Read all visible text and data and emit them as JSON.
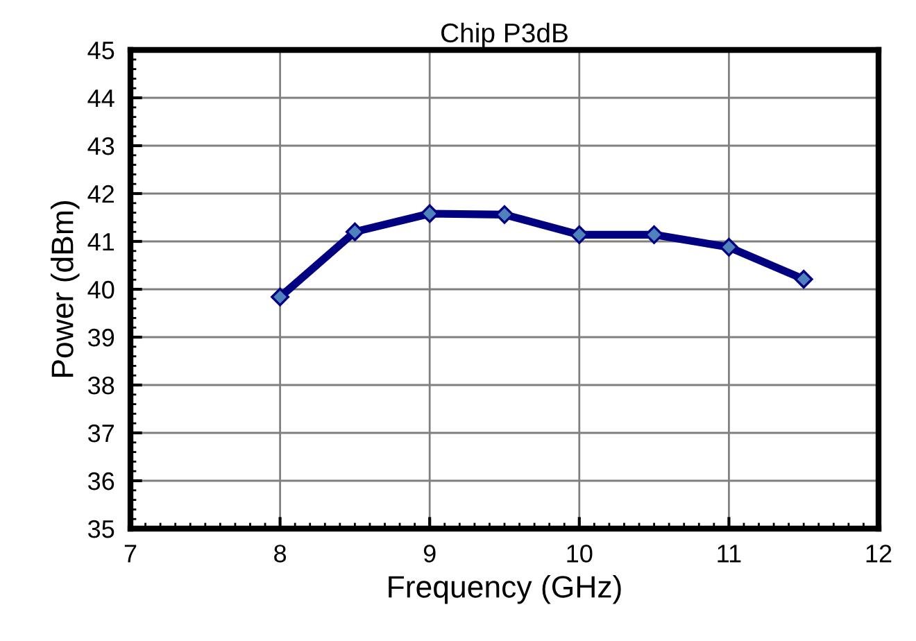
{
  "chart_data": {
    "type": "line",
    "title": "Chip P3dB",
    "xlabel": "Frequency (GHz)",
    "ylabel": "Power (dBm)",
    "x": [
      8,
      8.5,
      9,
      9.5,
      10,
      10.5,
      11,
      11.5
    ],
    "series": [
      {
        "color": "#000080",
        "values": [
          39.84,
          41.2,
          41.58,
          41.56,
          41.14,
          41.14,
          40.88,
          40.21
        ]
      }
    ],
    "xlim": [
      7,
      12
    ],
    "xticks": [
      7,
      8,
      9,
      10,
      11,
      12
    ],
    "ylim": [
      35,
      45
    ],
    "yticks": [
      35,
      36,
      37,
      38,
      39,
      40,
      41,
      42,
      43,
      44,
      45
    ],
    "grid": true,
    "marker": "diamond",
    "line_style": "solid",
    "legend": false
  }
}
